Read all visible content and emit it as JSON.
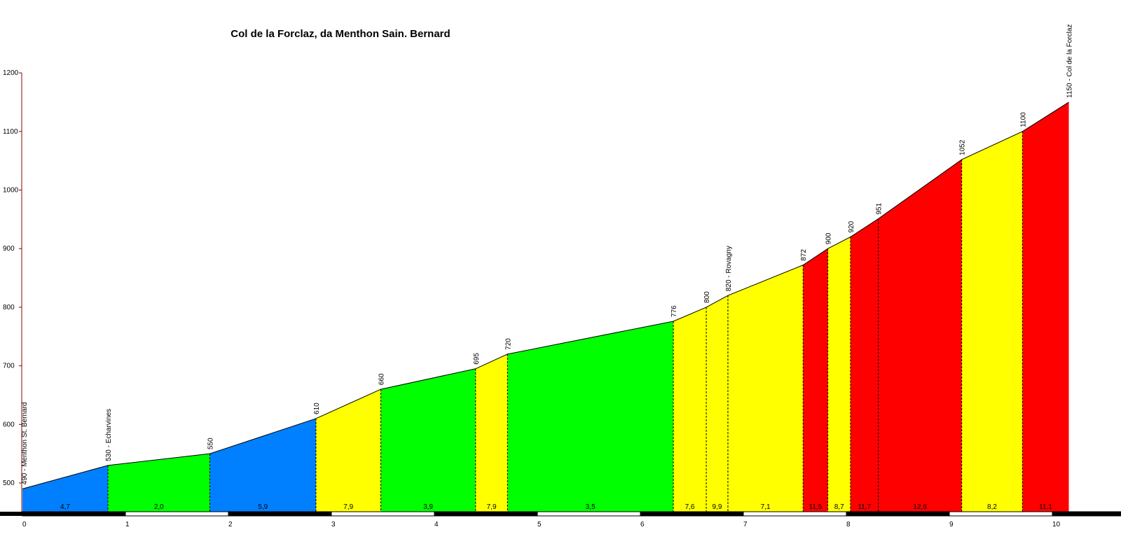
{
  "chart_data": {
    "type": "area",
    "title": "Col de la Forclaz, da Menthon Sain. Bernard",
    "xlabel": "",
    "ylabel": "",
    "xlim": [
      0,
      10.6
    ],
    "ylim": [
      460,
      1200
    ],
    "x_ticks": [
      "0",
      "1",
      "2",
      "3",
      "4",
      "5",
      "6",
      "7",
      "8",
      "9",
      "10"
    ],
    "y_ticks": [
      "500",
      "600",
      "700",
      "800",
      "900",
      "1000",
      "1100",
      "1200"
    ],
    "grid": false,
    "legend": "none",
    "colors": {
      "blue": "#0080ff",
      "green": "#00ff00",
      "yellow": "#ffff00",
      "red": "#ff0000"
    },
    "points": [
      {
        "x": 0,
        "y": 490,
        "label": "490 - Menthon St. Bernard"
      },
      {
        "x": 0.83,
        "y": 530,
        "label": "530 - Echarvines"
      },
      {
        "x": 1.82,
        "y": 550,
        "label": "550"
      },
      {
        "x": 2.85,
        "y": 610,
        "label": "610"
      },
      {
        "x": 3.48,
        "y": 660,
        "label": "660"
      },
      {
        "x": 4.4,
        "y": 695,
        "label": "695"
      },
      {
        "x": 4.71,
        "y": 720,
        "label": "720"
      },
      {
        "x": 6.32,
        "y": 776,
        "label": "776"
      },
      {
        "x": 6.64,
        "y": 800,
        "label": "800"
      },
      {
        "x": 6.85,
        "y": 820,
        "label": "820 - Rovagny"
      },
      {
        "x": 7.58,
        "y": 872,
        "label": "872"
      },
      {
        "x": 7.82,
        "y": 900,
        "label": "900"
      },
      {
        "x": 8.04,
        "y": 920,
        "label": "920"
      },
      {
        "x": 8.31,
        "y": 951,
        "label": "951"
      },
      {
        "x": 9.12,
        "y": 1052,
        "label": "1052"
      },
      {
        "x": 9.71,
        "y": 1100,
        "label": "1100"
      },
      {
        "x": 10.16,
        "y": 1150,
        "label": "1150 - Col de la Forclaz"
      }
    ],
    "segments": [
      {
        "gradient": "4,7",
        "color": "blue"
      },
      {
        "gradient": "2,0",
        "color": "green"
      },
      {
        "gradient": "5,9",
        "color": "blue"
      },
      {
        "gradient": "7,9",
        "color": "yellow"
      },
      {
        "gradient": "3,9",
        "color": "green"
      },
      {
        "gradient": "7,9",
        "color": "yellow"
      },
      {
        "gradient": "3,5",
        "color": "green"
      },
      {
        "gradient": "7,6",
        "color": "yellow"
      },
      {
        "gradient": "9,9",
        "color": "yellow"
      },
      {
        "gradient": "7,1",
        "color": "yellow"
      },
      {
        "gradient": "11,5",
        "color": "red"
      },
      {
        "gradient": "8,7",
        "color": "yellow"
      },
      {
        "gradient": "11,7",
        "color": "red"
      },
      {
        "gradient": "12,6",
        "color": "red"
      },
      {
        "gradient": "8,2",
        "color": "yellow"
      },
      {
        "gradient": "11,1",
        "color": "red"
      }
    ]
  }
}
